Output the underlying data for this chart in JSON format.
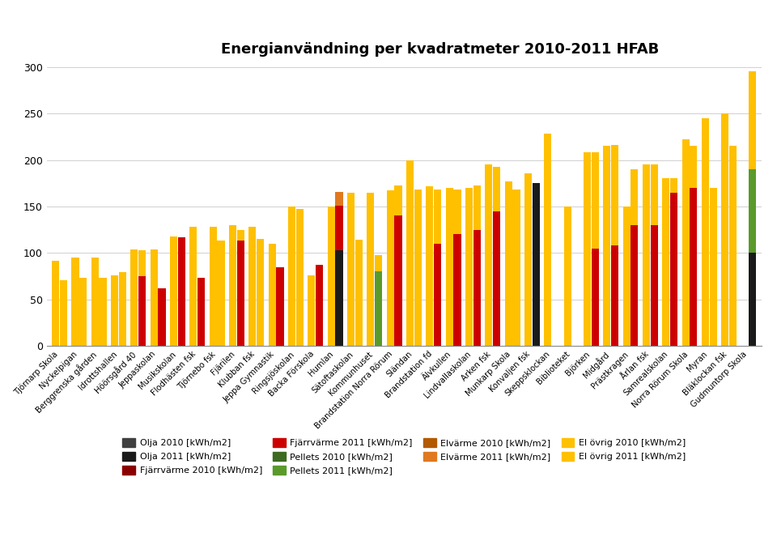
{
  "title": "Energianvändning per kvadratmeter 2010-2011 HFAB",
  "ylim": [
    0,
    300
  ],
  "yticks": [
    0,
    50,
    100,
    150,
    200,
    250,
    300
  ],
  "categories": [
    "Tjörnarp Skola",
    "Nyckelpigan",
    "Berggrenska gården",
    "Idrottshallen",
    "Höörsgård 40",
    "Jeppaskolan",
    "Musikskolan",
    "Flodhästen fsk",
    "Tjörnebo fsk",
    "Fjärilen",
    "Klubban fsk",
    "Jeppa Gymnastik",
    "Ringsjöskolan",
    "Backa Förskola",
    "Humlan",
    "Sätoftaskolan",
    "Kommunhuset",
    "Brandstation Norra Rörum",
    "Sländan",
    "Brandstation fd",
    "Älvkullen",
    "Lindvallaskolan",
    "Arken fsk",
    "Munkarp Skola",
    "Konvaljen fsk",
    "Skeppsklockan",
    "Biblioteket",
    "Björken",
    "Midgård",
    "Prästkragen",
    "Årlan fsk",
    "Samrealskolan",
    "Norra Rörum Skola",
    "Myran",
    "Bläklockan fsk",
    "Gudmuntorp Skola"
  ],
  "data_2010": {
    "Olja": [
      0,
      0,
      0,
      0,
      0,
      0,
      0,
      0,
      0,
      0,
      0,
      0,
      0,
      0,
      0,
      0,
      0,
      0,
      0,
      0,
      0,
      0,
      0,
      0,
      0,
      0,
      0,
      0,
      0,
      0,
      0,
      0,
      0,
      0,
      0,
      0
    ],
    "Fjärrvärme": [
      0,
      0,
      0,
      0,
      0,
      0,
      0,
      0,
      0,
      0,
      0,
      0,
      0,
      0,
      0,
      0,
      0,
      0,
      0,
      0,
      0,
      0,
      0,
      0,
      0,
      0,
      0,
      0,
      0,
      0,
      0,
      0,
      0,
      0,
      0,
      0
    ],
    "Pellets": [
      0,
      0,
      0,
      0,
      0,
      0,
      0,
      0,
      0,
      0,
      0,
      0,
      0,
      0,
      0,
      0,
      0,
      0,
      0,
      0,
      0,
      0,
      0,
      0,
      0,
      0,
      0,
      0,
      0,
      0,
      0,
      0,
      0,
      0,
      0,
      0
    ],
    "Elvärme": [
      0,
      0,
      0,
      0,
      0,
      0,
      0,
      0,
      0,
      0,
      0,
      0,
      0,
      0,
      0,
      0,
      0,
      0,
      0,
      0,
      0,
      0,
      0,
      0,
      0,
      0,
      0,
      0,
      0,
      0,
      0,
      0,
      0,
      0,
      0,
      0
    ],
    "El övrig": [
      92,
      95,
      95,
      76,
      104,
      104,
      118,
      128,
      128,
      130,
      128,
      110,
      150,
      76,
      150,
      165,
      165,
      167,
      200,
      172,
      170,
      170,
      195,
      177,
      186,
      228,
      150,
      208,
      215,
      150,
      195,
      180,
      222,
      245,
      250,
      0
    ]
  },
  "data_2011": {
    "Olja": [
      0,
      0,
      0,
      0,
      0,
      0,
      0,
      0,
      0,
      0,
      0,
      0,
      0,
      0,
      103,
      0,
      0,
      0,
      0,
      0,
      0,
      0,
      0,
      0,
      175,
      0,
      0,
      0,
      0,
      0,
      0,
      0,
      0,
      0,
      0,
      100
    ],
    "Fjärrvärme": [
      0,
      0,
      0,
      0,
      75,
      62,
      117,
      73,
      0,
      113,
      0,
      85,
      0,
      87,
      48,
      0,
      0,
      140,
      0,
      110,
      120,
      125,
      145,
      0,
      0,
      0,
      0,
      105,
      108,
      130,
      130,
      165,
      170,
      0,
      0,
      0
    ],
    "Pellets": [
      0,
      0,
      0,
      0,
      0,
      0,
      0,
      0,
      0,
      0,
      0,
      0,
      0,
      0,
      0,
      0,
      80,
      0,
      0,
      0,
      0,
      0,
      0,
      0,
      0,
      0,
      0,
      0,
      0,
      0,
      0,
      0,
      0,
      0,
      0,
      90
    ],
    "Elvärme": [
      0,
      0,
      0,
      0,
      0,
      0,
      0,
      0,
      0,
      0,
      0,
      0,
      0,
      0,
      15,
      0,
      0,
      0,
      0,
      0,
      0,
      0,
      0,
      0,
      0,
      0,
      0,
      0,
      0,
      0,
      0,
      0,
      0,
      0,
      0,
      0
    ],
    "El övrig": [
      71,
      73,
      73,
      79,
      28,
      0,
      0,
      0,
      113,
      12,
      115,
      0,
      147,
      0,
      0,
      114,
      18,
      33,
      168,
      58,
      48,
      48,
      48,
      168,
      0,
      0,
      0,
      103,
      108,
      60,
      65,
      15,
      45,
      170,
      215,
      105
    ]
  },
  "colors": {
    "Olja 2010": "#404040",
    "Olja 2011": "#1a1a1a",
    "Fjärrvärme 2010": "#8b0000",
    "Fjärrvärme 2011": "#cc0000",
    "Pellets 2010": "#3d6b21",
    "Pellets 2011": "#5a9a2a",
    "Elvärme 2010": "#b35900",
    "Elvärme 2011": "#e07820",
    "El övrig 2010": "#ffc000",
    "El övrig 2011": "#ffc000"
  },
  "legend": [
    [
      "Olja 2010 [kWh/m2]",
      "Olja 2011 [kWh/m2]",
      "Fjärrvärme 2010 [kWh/m2]",
      "Fjärrvärme 2011 [kWh/m2]"
    ],
    [
      "Pellets 2010 [kWh/m2]",
      "Pellets 2011 [kWh/m2]",
      "Elvärme 2010 [kWh/m2]",
      "Elvärme 2011 [kWh/m2]"
    ],
    [
      "El övrig 2010 [kWh/m2]",
      "El övrig 2011 [kWh/m2]",
      "",
      ""
    ]
  ]
}
